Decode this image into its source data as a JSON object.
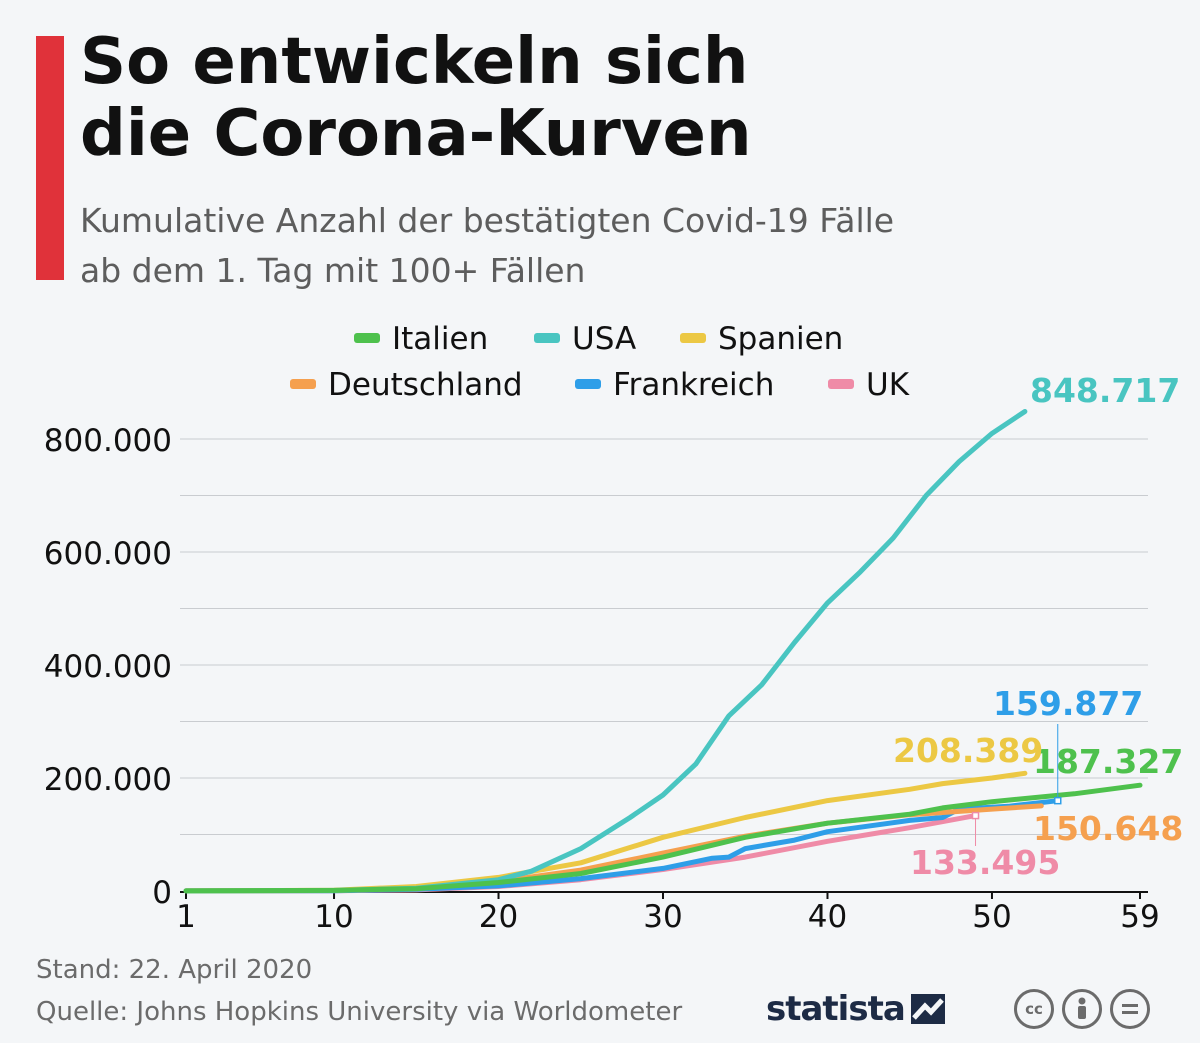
{
  "header": {
    "title_line1": "So entwickeln sich",
    "title_line2": "die Corona-Kurven",
    "subtitle_line1": "Kumulative Anzahl der bestätigten Covid-19 Fälle",
    "subtitle_line2": "ab dem 1. Tag mit 100+ Fällen"
  },
  "footer": {
    "stand": "Stand: 22. April 2020",
    "source": "Quelle: Johns Hopkins University via Worldometer",
    "brand": "statista"
  },
  "icons": [
    "cc-icon",
    "by-icon",
    "nd-icon"
  ],
  "chart_data": {
    "type": "line",
    "x_ticks": [
      1,
      10,
      20,
      30,
      40,
      50,
      59
    ],
    "y_ticks": [
      0,
      200000,
      400000,
      600000,
      800000
    ],
    "y_tick_labels": [
      "0",
      "200.000",
      "400.000",
      "600.000",
      "800.000"
    ],
    "x_tick_labels": [
      "1",
      "10",
      "20",
      "30",
      "40",
      "50",
      "59"
    ],
    "xlim": [
      1,
      59
    ],
    "ylim": [
      0,
      800000
    ],
    "series": [
      {
        "name": "Italien",
        "color": "#4ec14d",
        "end_label": "187.327",
        "points": [
          [
            1,
            100
          ],
          [
            10,
            1000
          ],
          [
            15,
            4000
          ],
          [
            20,
            15000
          ],
          [
            25,
            31000
          ],
          [
            30,
            60000
          ],
          [
            35,
            95000
          ],
          [
            40,
            120000
          ],
          [
            45,
            136000
          ],
          [
            47,
            147000
          ],
          [
            50,
            158000
          ],
          [
            55,
            172000
          ],
          [
            59,
            187327
          ]
        ]
      },
      {
        "name": "USA",
        "color": "#49c5c1",
        "end_label": "848.717",
        "points": [
          [
            1,
            100
          ],
          [
            10,
            800
          ],
          [
            15,
            5000
          ],
          [
            20,
            20000
          ],
          [
            22,
            35000
          ],
          [
            25,
            75000
          ],
          [
            28,
            130000
          ],
          [
            30,
            170000
          ],
          [
            32,
            225000
          ],
          [
            34,
            310000
          ],
          [
            36,
            365000
          ],
          [
            38,
            440000
          ],
          [
            40,
            510000
          ],
          [
            42,
            565000
          ],
          [
            44,
            625000
          ],
          [
            46,
            700000
          ],
          [
            48,
            760000
          ],
          [
            50,
            810000
          ],
          [
            52,
            848717
          ]
        ]
      },
      {
        "name": "Spanien",
        "color": "#ecc844",
        "end_label": "208.389",
        "points": [
          [
            1,
            100
          ],
          [
            10,
            1500
          ],
          [
            15,
            8000
          ],
          [
            20,
            24000
          ],
          [
            25,
            50000
          ],
          [
            30,
            95000
          ],
          [
            35,
            130000
          ],
          [
            40,
            160000
          ],
          [
            45,
            180000
          ],
          [
            47,
            190000
          ],
          [
            50,
            200000
          ],
          [
            52,
            208389
          ]
        ]
      },
      {
        "name": "Deutschland",
        "color": "#f5a04f",
        "end_label": "150.648",
        "points": [
          [
            1,
            100
          ],
          [
            10,
            900
          ],
          [
            15,
            5000
          ],
          [
            20,
            17000
          ],
          [
            25,
            37000
          ],
          [
            30,
            67000
          ],
          [
            35,
            97000
          ],
          [
            40,
            120000
          ],
          [
            45,
            135000
          ],
          [
            50,
            145000
          ],
          [
            53,
            150648
          ]
        ]
      },
      {
        "name": "Frankreich",
        "color": "#2e9ee8",
        "end_label": "159.877",
        "points": [
          [
            1,
            100
          ],
          [
            10,
            600
          ],
          [
            15,
            3000
          ],
          [
            20,
            9000
          ],
          [
            25,
            22000
          ],
          [
            30,
            40000
          ],
          [
            33,
            58000
          ],
          [
            34,
            60000
          ],
          [
            35,
            75000
          ],
          [
            38,
            90000
          ],
          [
            40,
            105000
          ],
          [
            45,
            125000
          ],
          [
            47,
            130000
          ],
          [
            48,
            145000
          ],
          [
            51,
            150000
          ],
          [
            54,
            159877
          ]
        ]
      },
      {
        "name": "UK",
        "color": "#ef8ba7",
        "end_label": "133.495",
        "points": [
          [
            1,
            100
          ],
          [
            10,
            500
          ],
          [
            15,
            2000
          ],
          [
            20,
            8000
          ],
          [
            25,
            20000
          ],
          [
            30,
            38000
          ],
          [
            35,
            60000
          ],
          [
            40,
            88000
          ],
          [
            45,
            112000
          ],
          [
            49,
            133495
          ]
        ]
      }
    ]
  }
}
